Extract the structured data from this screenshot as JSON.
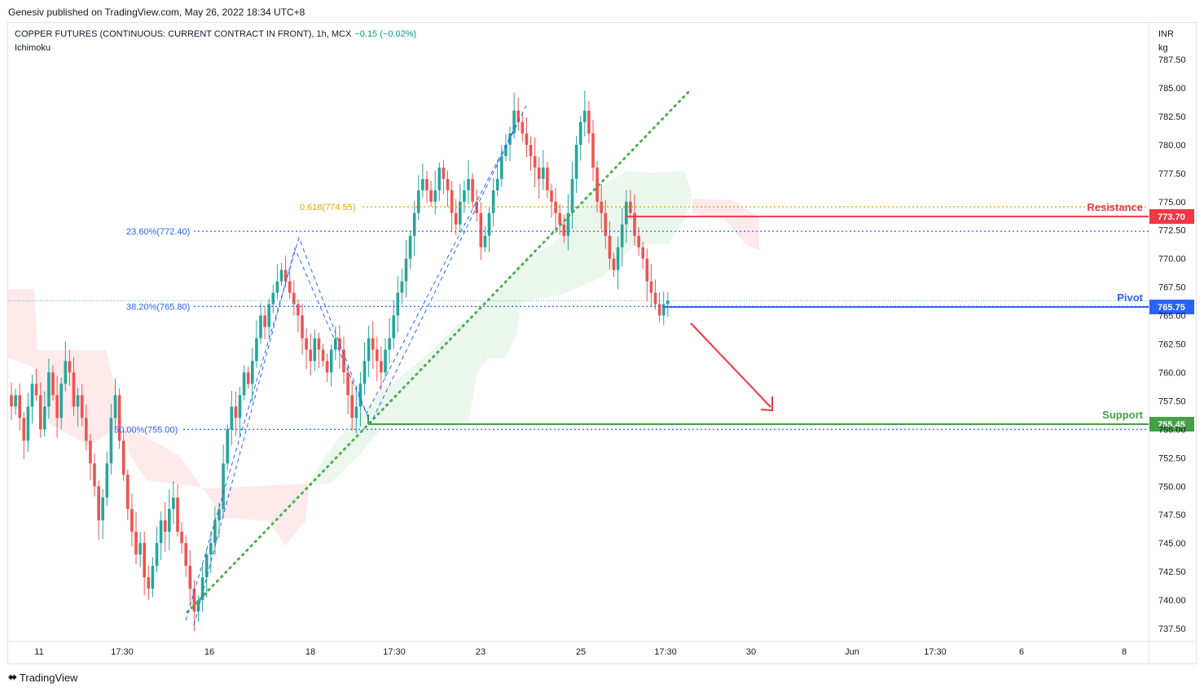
{
  "publisher": "Genesiv published on TradingView.com, May 26, 2022 18:34 UTC+8",
  "symbol": {
    "title": "COPPER FUTURES (CONTINUOUS: CURRENT CONTRACT IN FRONT), 1h, MCX",
    "change": "−0.15 (−0.02%)",
    "indicator": "Ichimoku"
  },
  "footer": {
    "logo_icon": "tradingview-logo-icon",
    "brand": "TradingView"
  },
  "colors": {
    "up": "#26a69a",
    "down": "#ef5350",
    "resistance": "#f23645",
    "pivot": "#2962ff",
    "support": "#43a047",
    "fib": "#2962ff",
    "fib_gold": "#e6a700",
    "trend": "#4caf50"
  },
  "chart_data": {
    "type": "candlestick",
    "y_axis": {
      "unit_top": "INR",
      "unit_bottom": "kg",
      "min": 737.5,
      "max": 787.5,
      "ticks": [
        "787.50",
        "785.00",
        "782.50",
        "780.00",
        "777.50",
        "775.00",
        "772.50",
        "770.00",
        "767.50",
        "765.00",
        "762.50",
        "760.00",
        "757.50",
        "755.00",
        "752.50",
        "750.00",
        "747.50",
        "745.00",
        "742.50",
        "740.00",
        "737.50"
      ]
    },
    "x_axis": {
      "ticks": [
        "11",
        "17:30",
        "16",
        "18",
        "17:30",
        "23",
        "25",
        "17:30",
        "30",
        "Jun",
        "17:30",
        "6",
        "8"
      ]
    },
    "levels": [
      {
        "name": "Resistance",
        "value": 773.7,
        "tag": "773.70"
      },
      {
        "name": "Pivot",
        "value": 765.75,
        "tag": "765.75"
      },
      {
        "name": "Support",
        "value": 755.45,
        "tag": "755.45"
      }
    ],
    "fibonacci": [
      {
        "label": "0.618(774.55)",
        "value": 774.55
      },
      {
        "label": "23.60%(772.40)",
        "value": 772.4
      },
      {
        "label": "38.20%(765.80)",
        "value": 765.8
      },
      {
        "label": "50.00%(755.00)",
        "value": 755.0
      }
    ],
    "last_close_level": 766.3,
    "closes": [
      757,
      758,
      756,
      754,
      757,
      759,
      758,
      755,
      757,
      760,
      758,
      756,
      759,
      761,
      760,
      757,
      758,
      756,
      754,
      752,
      750,
      747,
      749,
      752,
      756,
      758,
      754,
      751,
      748,
      746,
      744,
      745,
      742,
      741,
      743,
      745,
      747,
      746,
      748,
      749,
      746,
      745,
      743,
      741,
      739,
      740,
      742,
      744,
      745,
      747,
      748,
      752,
      755,
      757,
      756,
      758,
      760,
      759,
      761,
      763,
      765,
      764,
      766,
      767,
      768,
      769,
      768,
      767,
      766,
      765,
      763,
      762,
      761,
      763,
      762,
      761,
      760,
      762,
      763,
      762,
      760,
      758,
      756,
      757,
      759,
      761,
      763,
      762,
      761,
      760,
      762,
      763,
      765,
      767,
      768,
      770,
      772,
      774,
      776,
      777,
      776,
      775,
      776,
      778,
      777,
      776,
      774,
      773,
      775,
      776,
      777,
      775,
      774,
      771,
      772,
      774,
      776,
      777,
      779,
      780,
      781,
      783,
      782,
      781,
      780,
      779,
      778,
      777,
      778,
      776,
      775,
      774,
      773,
      772,
      774,
      777,
      780,
      782,
      783,
      781,
      778,
      775,
      774,
      772,
      770,
      769,
      771,
      773,
      775,
      774,
      772,
      771,
      770,
      768,
      767,
      766,
      765,
      766,
      766.3
    ]
  }
}
